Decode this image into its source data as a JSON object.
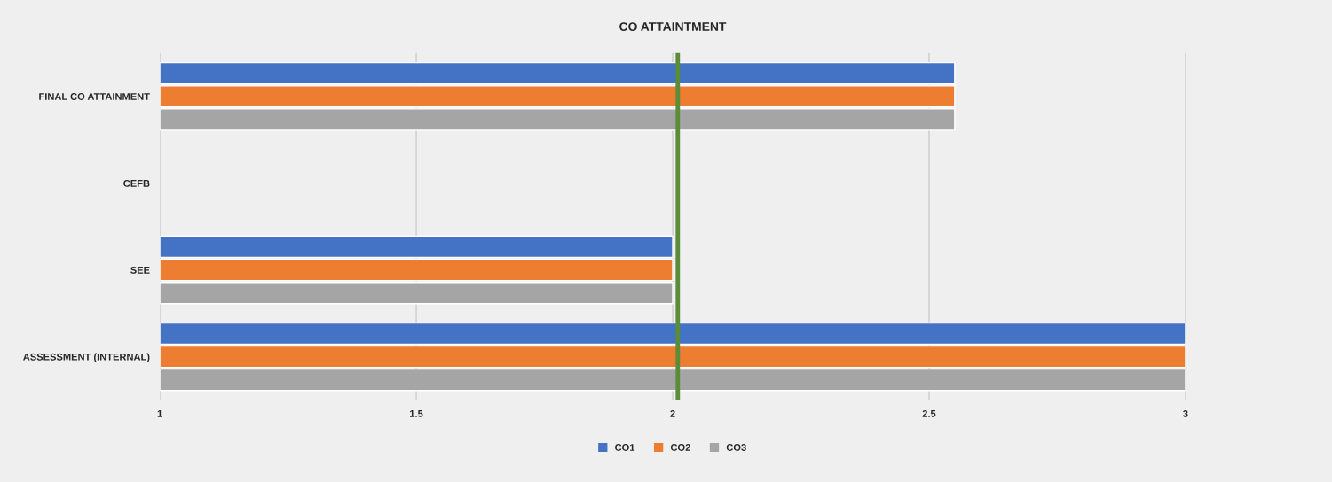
{
  "chart_data": {
    "type": "bar",
    "orientation": "horizontal",
    "title": "CO ATTAINTMENT",
    "categories": [
      "FINAL CO ATTAINMENT",
      "CEFB",
      "SEE",
      "ASSESSMENT (INTERNAL)"
    ],
    "series": [
      {
        "name": "CO1",
        "color": "#4472c4",
        "values": [
          2.55,
          null,
          2.0,
          3.0
        ]
      },
      {
        "name": "CO2",
        "color": "#ed7d31",
        "values": [
          2.55,
          null,
          2.0,
          3.0
        ]
      },
      {
        "name": "CO3",
        "color": "#a5a5a5",
        "values": [
          2.55,
          null,
          2.0,
          3.0
        ]
      }
    ],
    "xlim": [
      1,
      3
    ],
    "xticks": [
      1,
      1.5,
      2,
      2.5,
      3
    ],
    "ref_lines": [
      {
        "axis": "x",
        "value": 2.01,
        "color": "#5b8c3a"
      }
    ],
    "grid": "x",
    "legend": "bottom"
  }
}
